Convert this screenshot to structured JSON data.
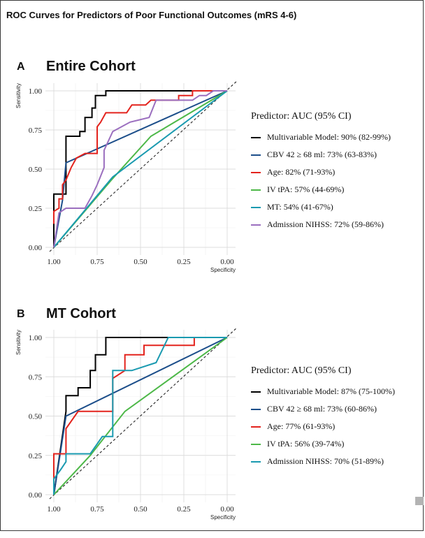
{
  "figure_title": "ROC Curves for Predictors of Poor Functional Outcomes (mRS 4-6)",
  "panels": [
    {
      "letter": "A",
      "title": "Entire Cohort",
      "legend_title": "Predictor: AUC (95% CI)"
    },
    {
      "letter": "B",
      "title": "MT Cohort",
      "legend_title": "Predictor: AUC (95% CI)"
    }
  ],
  "chart_data": [
    {
      "type": "line",
      "title": "Entire Cohort",
      "xlabel": "Specificity",
      "ylabel": "Sensitivity",
      "x_reversed": true,
      "xlim": [
        1.0,
        0.0
      ],
      "ylim": [
        0.0,
        1.0
      ],
      "xticks": [
        "1.00",
        "0.75",
        "0.50",
        "0.25",
        "0.00"
      ],
      "yticks": [
        "0.00",
        "0.25",
        "0.50",
        "0.75",
        "1.00"
      ],
      "grid": true,
      "legend_position": "right",
      "reference_line": "dashed diagonal",
      "series": [
        {
          "name": "Multivariable Model: 90% (82-99%)",
          "color": "#000000",
          "points": [
            [
              1,
              0
            ],
            [
              1,
              0.34
            ],
            [
              0.93,
              0.34
            ],
            [
              0.93,
              0.71
            ],
            [
              0.85,
              0.71
            ],
            [
              0.85,
              0.74
            ],
            [
              0.82,
              0.74
            ],
            [
              0.82,
              0.83
            ],
            [
              0.78,
              0.83
            ],
            [
              0.78,
              0.89
            ],
            [
              0.76,
              0.89
            ],
            [
              0.76,
              0.97
            ],
            [
              0.7,
              0.97
            ],
            [
              0.7,
              1
            ],
            [
              0,
              1
            ]
          ]
        },
        {
          "name": "CBV 42 ≥ 68 ml: 73% (63-83%)",
          "color": "#1c4e8a",
          "points": [
            [
              1,
              0
            ],
            [
              0.95,
              0.3
            ],
            [
              0.93,
              0.54
            ],
            [
              0,
              1
            ]
          ]
        },
        {
          "name": "Age: 82% (71-93%)",
          "color": "#e3231d",
          "points": [
            [
              1,
              0.15
            ],
            [
              1,
              0.23
            ],
            [
              0.97,
              0.25
            ],
            [
              0.97,
              0.31
            ],
            [
              0.95,
              0.31
            ],
            [
              0.95,
              0.4
            ],
            [
              0.93,
              0.43
            ],
            [
              0.9,
              0.51
            ],
            [
              0.87,
              0.57
            ],
            [
              0.82,
              0.6
            ],
            [
              0.75,
              0.6
            ],
            [
              0.75,
              0.77
            ],
            [
              0.73,
              0.8
            ],
            [
              0.7,
              0.86
            ],
            [
              0.58,
              0.86
            ],
            [
              0.55,
              0.91
            ],
            [
              0.47,
              0.91
            ],
            [
              0.44,
              0.94
            ],
            [
              0.28,
              0.94
            ],
            [
              0.28,
              0.97
            ],
            [
              0.2,
              0.97
            ],
            [
              0.2,
              1
            ],
            [
              0,
              1
            ]
          ]
        },
        {
          "name": "IV tPA: 57% (44-69%)",
          "color": "#4db848",
          "points": [
            [
              1,
              0
            ],
            [
              0.66,
              0.44
            ],
            [
              0.44,
              0.71
            ],
            [
              0,
              1
            ]
          ]
        },
        {
          "name": "MT: 54% (41-67%)",
          "color": "#1a9ab0",
          "points": [
            [
              1,
              0
            ],
            [
              0.66,
              0.45
            ],
            [
              0,
              1
            ]
          ]
        },
        {
          "name": "Admission NIHSS: 72% (59-86%)",
          "color": "#9b6fbf",
          "points": [
            [
              1,
              0
            ],
            [
              0.97,
              0.22
            ],
            [
              0.93,
              0.25
            ],
            [
              0.88,
              0.25
            ],
            [
              0.82,
              0.25
            ],
            [
              0.78,
              0.33
            ],
            [
              0.75,
              0.4
            ],
            [
              0.71,
              0.51
            ],
            [
              0.71,
              0.62
            ],
            [
              0.66,
              0.74
            ],
            [
              0.61,
              0.77
            ],
            [
              0.56,
              0.8
            ],
            [
              0.45,
              0.83
            ],
            [
              0.41,
              0.94
            ],
            [
              0.2,
              0.94
            ],
            [
              0.16,
              0.97
            ],
            [
              0.12,
              0.97
            ],
            [
              0.08,
              1
            ],
            [
              0,
              1
            ]
          ]
        }
      ]
    },
    {
      "type": "line",
      "title": "MT Cohort",
      "xlabel": "Specificity",
      "ylabel": "Sensitivity",
      "x_reversed": true,
      "xlim": [
        1.0,
        0.0
      ],
      "ylim": [
        0.0,
        1.0
      ],
      "xticks": [
        "1.00",
        "0.75",
        "0.50",
        "0.25",
        "0.00"
      ],
      "yticks": [
        "0.00",
        "0.25",
        "0.50",
        "0.75",
        "1.00"
      ],
      "grid": true,
      "legend_position": "right",
      "reference_line": "dashed diagonal",
      "series": [
        {
          "name": "Multivariable Model: 87% (75-100%)",
          "color": "#000000",
          "points": [
            [
              1,
              0
            ],
            [
              0.93,
              0.53
            ],
            [
              0.93,
              0.63
            ],
            [
              0.86,
              0.63
            ],
            [
              0.86,
              0.68
            ],
            [
              0.79,
              0.68
            ],
            [
              0.79,
              0.79
            ],
            [
              0.76,
              0.79
            ],
            [
              0.76,
              0.89
            ],
            [
              0.7,
              0.89
            ],
            [
              0.7,
              1
            ],
            [
              0,
              1
            ]
          ]
        },
        {
          "name": "CBV 42 ≥ 68 ml: 73% (60-86%)",
          "color": "#1c4e8a",
          "points": [
            [
              1,
              0
            ],
            [
              0.93,
              0.5
            ],
            [
              0,
              1
            ]
          ]
        },
        {
          "name": "Age: 77% (61-93%)",
          "color": "#e3231d",
          "points": [
            [
              1,
              0
            ],
            [
              1,
              0.26
            ],
            [
              0.93,
              0.26
            ],
            [
              0.93,
              0.42
            ],
            [
              0.86,
              0.53
            ],
            [
              0.66,
              0.53
            ],
            [
              0.66,
              0.74
            ],
            [
              0.59,
              0.79
            ],
            [
              0.59,
              0.89
            ],
            [
              0.48,
              0.89
            ],
            [
              0.48,
              0.95
            ],
            [
              0.19,
              0.95
            ],
            [
              0.19,
              1
            ],
            [
              0,
              1
            ]
          ]
        },
        {
          "name": "IV tPA: 56% (39-74%)",
          "color": "#4db848",
          "points": [
            [
              1,
              0
            ],
            [
              0.79,
              0.25
            ],
            [
              0.59,
              0.53
            ],
            [
              0,
              1
            ]
          ]
        },
        {
          "name": "Admission NIHSS: 70% (51-89%)",
          "color": "#1a9ab0",
          "points": [
            [
              1,
              0
            ],
            [
              1,
              0.1
            ],
            [
              0.96,
              0.16
            ],
            [
              0.93,
              0.21
            ],
            [
              0.93,
              0.26
            ],
            [
              0.79,
              0.26
            ],
            [
              0.72,
              0.37
            ],
            [
              0.66,
              0.37
            ],
            [
              0.66,
              0.79
            ],
            [
              0.55,
              0.79
            ],
            [
              0.41,
              0.84
            ],
            [
              0.34,
              1
            ],
            [
              0,
              1
            ]
          ]
        }
      ]
    }
  ]
}
